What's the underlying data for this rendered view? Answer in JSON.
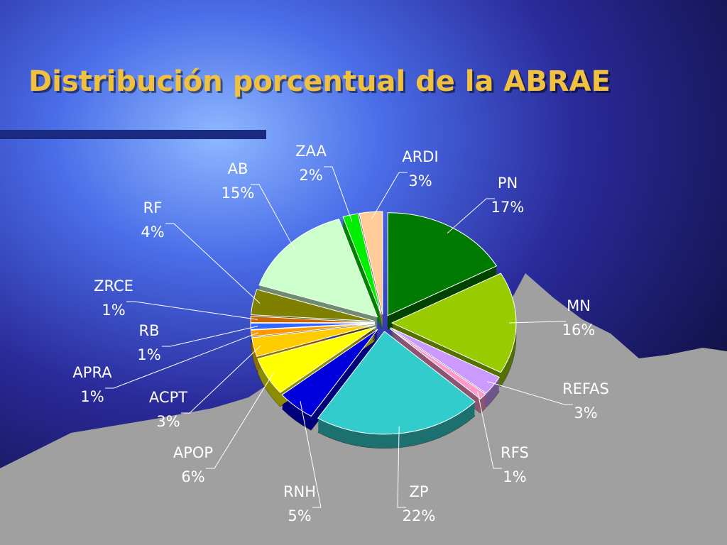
{
  "chart_data": {
    "type": "pie",
    "title": "Distribución porcentual de la ABRAE",
    "categories": [
      "PN",
      "MN",
      "REFAS",
      "RFS",
      "ZP",
      "RNH",
      "APOP",
      "ACPT",
      "APRA",
      "RB",
      "ZRCE",
      "RF",
      "AB",
      "ZAA",
      "ARDI"
    ],
    "values": [
      17,
      16,
      3,
      1,
      22,
      5,
      6,
      3,
      1,
      1,
      1,
      4,
      15,
      2,
      3
    ],
    "value_labels": [
      "17%",
      "16%",
      "3%",
      "1%",
      "22%",
      "5%",
      "6%",
      "3%",
      "1%",
      "1%",
      "1%",
      "4%",
      "15%",
      "2%",
      "3%"
    ],
    "colors": [
      "#007a00",
      "#99cc00",
      "#cc99ff",
      "#ff99cc",
      "#33cccc",
      "#0000dd",
      "#ffff00",
      "#ffcc00",
      "#ff9900",
      "#3366ff",
      "#cc6600",
      "#808000",
      "#ccffcc",
      "#00ee00",
      "#ffcc99"
    ]
  }
}
